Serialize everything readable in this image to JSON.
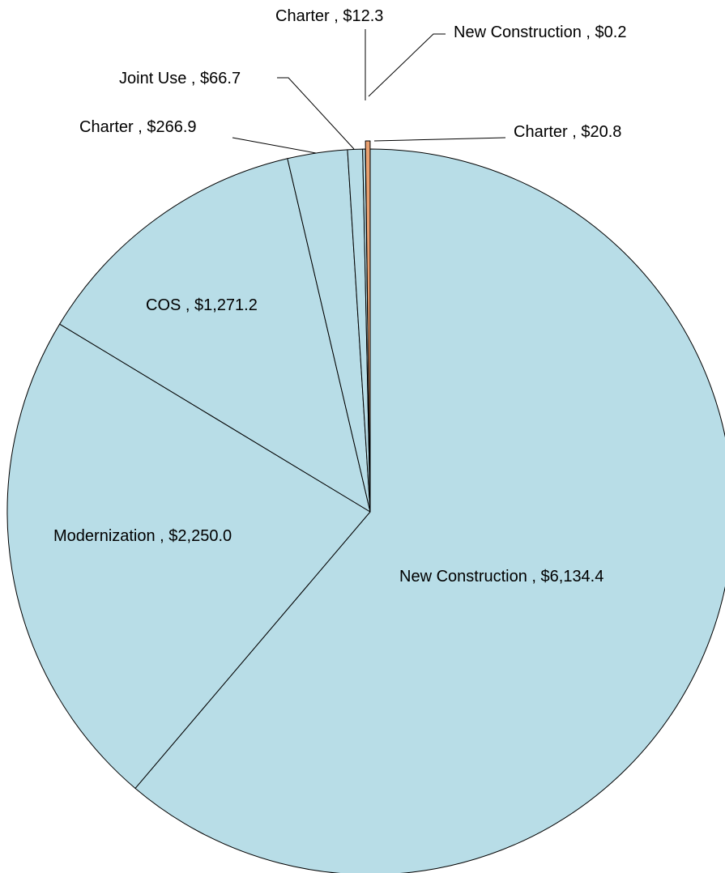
{
  "chart_data": {
    "type": "pie",
    "title": "",
    "slices": [
      {
        "category": "New Construction",
        "value": 6134.4,
        "label": "New Construction ,  $6,134.4",
        "color": "#b8dde7"
      },
      {
        "category": "Modernization",
        "value": 2250.0,
        "label": "Modernization ,  $2,250.0",
        "color": "#b8dde7"
      },
      {
        "category": "COS",
        "value": 1271.2,
        "label": "COS ,  $1,271.2",
        "color": "#b8dde7"
      },
      {
        "category": "Charter",
        "value": 266.9,
        "label": "Charter ,  $266.9",
        "color": "#b8dde7"
      },
      {
        "category": "Joint Use",
        "value": 66.7,
        "label": "Joint Use ,  $66.7",
        "color": "#b8dde7"
      },
      {
        "category": "Charter",
        "value": 12.3,
        "label": "Charter ,  $12.3",
        "color": "#b8dde7"
      },
      {
        "category": "New Construction",
        "value": 0.2,
        "label": "New Construction ,  $0.2",
        "color": "#1f8a3a"
      },
      {
        "category": "Charter",
        "value": 20.8,
        "label": "Charter ,  $20.8",
        "color": "#e8a070"
      }
    ]
  }
}
